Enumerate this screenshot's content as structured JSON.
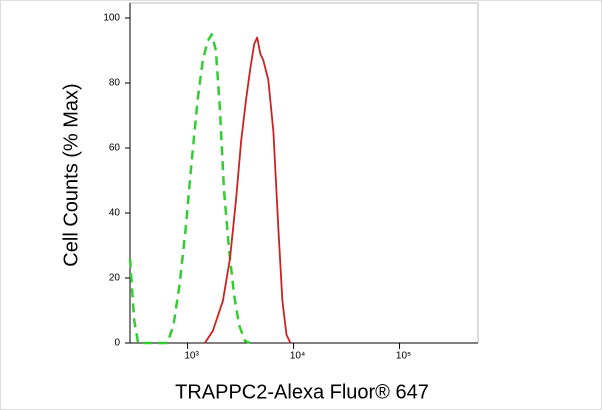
{
  "chart_data": {
    "type": "line",
    "x_label": "TRAPPC2-Alexa Fluor® 647",
    "y_label": "Cell Counts (% Max)",
    "x_scale": "log",
    "xlim": [
      286,
      550000
    ],
    "ylim": [
      0,
      100
    ],
    "xticks": [
      {
        "value": 1000,
        "label": "10³"
      },
      {
        "value": 10000,
        "label": "10⁴"
      },
      {
        "value": 100000,
        "label": "10⁵"
      }
    ],
    "yticks": [
      0,
      20,
      40,
      60,
      80,
      100
    ],
    "series": [
      {
        "color": "#33cc33",
        "line_style": "dashed",
        "x": [
          286,
          313,
          341,
          645,
          736,
          840,
          957,
          1092,
          1245,
          1390,
          1552,
          1692,
          1848,
          2018,
          2203,
          2456,
          2743,
          3063,
          3490,
          3892
        ],
        "values": [
          26,
          7,
          0,
          0,
          5.5,
          18,
          35,
          56,
          75,
          87,
          93,
          95,
          90,
          72,
          47,
          29,
          15,
          5.5,
          0.6,
          0
        ]
      },
      {
        "color": "#cc2222",
        "line_style": "solid",
        "x": [
          1452,
          1730,
          2154,
          2512,
          2864,
          3198,
          3566,
          3892,
          4254,
          4541,
          4850,
          5179,
          5777,
          6452,
          7197,
          7852,
          8570,
          9352
        ],
        "values": [
          0,
          3.7,
          13,
          26,
          44,
          62,
          75,
          84,
          92,
          94,
          89,
          87,
          81,
          65,
          35,
          13,
          2.5,
          0
        ]
      }
    ]
  }
}
